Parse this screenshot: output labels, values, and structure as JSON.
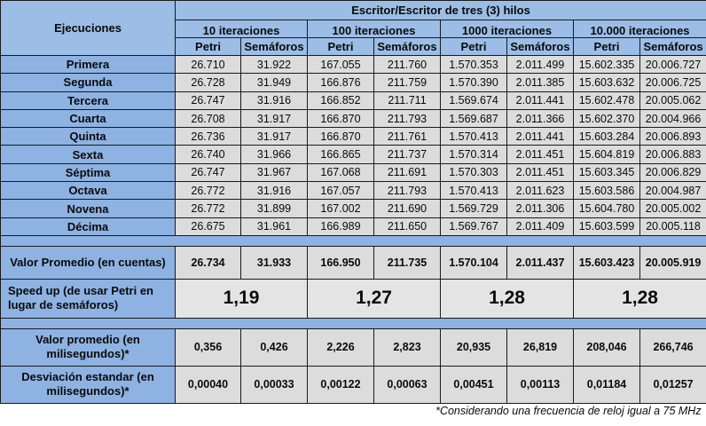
{
  "table": {
    "header_left": "Ejecuciones",
    "header_main": "Escritor/Escritor de tres (3) hilos",
    "groups": [
      "10 iteraciones",
      "100 iteraciones",
      "1000 iteraciones",
      "10.000 iteraciones"
    ],
    "sub_headers": [
      "Petri",
      "Semáforos",
      "Petri",
      "Semáforos",
      "Petri",
      "Semáforos",
      "Petri",
      "Semáforos"
    ],
    "rows": [
      {
        "label": "Primera",
        "values": [
          "26.710",
          "31.922",
          "167.055",
          "211.760",
          "1.570.353",
          "2.011.499",
          "15.602.335",
          "20.006.727"
        ]
      },
      {
        "label": "Segunda",
        "values": [
          "26.728",
          "31.949",
          "166.876",
          "211.759",
          "1.570.390",
          "2.011.385",
          "15.603.632",
          "20.006.725"
        ]
      },
      {
        "label": "Tercera",
        "values": [
          "26.747",
          "31.916",
          "166.852",
          "211.711",
          "1.569.674",
          "2.011.441",
          "15.602.478",
          "20.005.062"
        ]
      },
      {
        "label": "Cuarta",
        "values": [
          "26.708",
          "31.917",
          "166.870",
          "211.793",
          "1.569.687",
          "2.011.366",
          "15.602.370",
          "20.004.966"
        ]
      },
      {
        "label": "Quinta",
        "values": [
          "26.736",
          "31.917",
          "166.870",
          "211.761",
          "1.570.413",
          "2.011.441",
          "15.603.284",
          "20.006.893"
        ]
      },
      {
        "label": "Sexta",
        "values": [
          "26.740",
          "31.966",
          "166.865",
          "211.737",
          "1.570.314",
          "2.011.451",
          "15.604.819",
          "20.006.883"
        ]
      },
      {
        "label": "Séptima",
        "values": [
          "26.747",
          "31.967",
          "167.068",
          "211.691",
          "1.570.303",
          "2.011.451",
          "15.603.345",
          "20.006.829"
        ]
      },
      {
        "label": "Octava",
        "values": [
          "26.772",
          "31.916",
          "167.057",
          "211.793",
          "1.570.413",
          "2.011.623",
          "15.603.586",
          "20.004.987"
        ]
      },
      {
        "label": "Novena",
        "values": [
          "26.772",
          "31.899",
          "167.002",
          "211.690",
          "1.569.729",
          "2.011.306",
          "15.604.780",
          "20.005.002"
        ]
      },
      {
        "label": "Décima",
        "values": [
          "26.675",
          "31.961",
          "166.989",
          "211.650",
          "1.569.767",
          "2.011.409",
          "15.603.599",
          "20.005.118"
        ]
      }
    ],
    "average": {
      "label": "Valor Promedio (en cuentas)",
      "values": [
        "26.734",
        "31.933",
        "166.950",
        "211.735",
        "1.570.104",
        "2.011.437",
        "15.603.423",
        "20.005.919"
      ]
    },
    "speedup": {
      "label": "Speed up (de usar Petri en lugar de semáforos)",
      "values": [
        "1,19",
        "1,27",
        "1,28",
        "1,28"
      ]
    },
    "avg_ms": {
      "label": "Valor promedio (en milisegundos)*",
      "values": [
        "0,356",
        "0,426",
        "2,226",
        "2,823",
        "20,935",
        "26,819",
        "208,046",
        "266,746"
      ]
    },
    "std_ms": {
      "label": "Desviación estandar (en milisegundos)*",
      "values": [
        "0,00040",
        "0,00033",
        "0,00122",
        "0,00063",
        "0,00451",
        "0,00113",
        "0,01184",
        "0,01257"
      ]
    },
    "footnote": "*Considerando una frecuencia de reloj igual a 75 MHz"
  },
  "colors": {
    "header_bg": "#9cbde6",
    "label_bg": "#8eb2e2",
    "value_bg": "#dcdcdc",
    "border": "#1a1a1a"
  }
}
